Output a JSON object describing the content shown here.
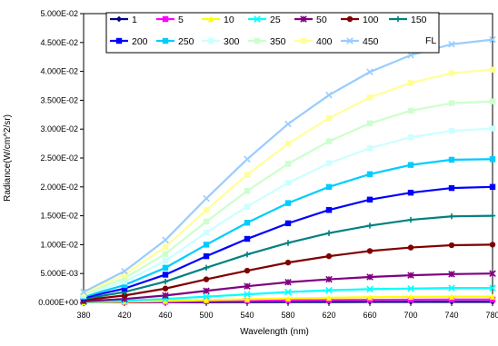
{
  "chart_data": {
    "type": "line",
    "xlabel": "Wavelength  (nm)",
    "ylabel": "Radiance(W/cm^2/sr)",
    "xlim": [
      380,
      780
    ],
    "ylim": [
      0,
      0.05
    ],
    "x_ticks": [
      {
        "value": 380,
        "label": "380"
      },
      {
        "value": 420,
        "label": "420"
      },
      {
        "value": 460,
        "label": "460"
      },
      {
        "value": 500,
        "label": "500"
      },
      {
        "value": 540,
        "label": "540"
      },
      {
        "value": 580,
        "label": "580"
      },
      {
        "value": 620,
        "label": "620"
      },
      {
        "value": 660,
        "label": "660"
      },
      {
        "value": 700,
        "label": "700"
      },
      {
        "value": 740,
        "label": "740"
      },
      {
        "value": 780,
        "label": "780"
      }
    ],
    "y_ticks": [
      {
        "value": 0,
        "label": "0.000E+00"
      },
      {
        "value": 0.005,
        "label": "5.000E-03"
      },
      {
        "value": 0.01,
        "label": "1.000E-02"
      },
      {
        "value": 0.015,
        "label": "1.500E-02"
      },
      {
        "value": 0.02,
        "label": "2.000E-02"
      },
      {
        "value": 0.025,
        "label": "2.500E-02"
      },
      {
        "value": 0.03,
        "label": "3.000E-02"
      },
      {
        "value": 0.035,
        "label": "3.500E-02"
      },
      {
        "value": 0.04,
        "label": "4.000E-02"
      },
      {
        "value": 0.045,
        "label": "4.500E-02"
      },
      {
        "value": 0.05,
        "label": "5.000E-02"
      }
    ],
    "grid": false,
    "legend_position": "top",
    "x": [
      380,
      420,
      460,
      500,
      540,
      580,
      620,
      660,
      700,
      740,
      780
    ],
    "series": [
      {
        "name": "1",
        "color": "#000080",
        "marker": "diamond",
        "values": [
          1e-05,
          2e-05,
          3e-05,
          4e-05,
          6e-05,
          7e-05,
          8e-05,
          9e-05,
          0.0001,
          0.0001,
          0.0001
        ]
      },
      {
        "name": "5",
        "color": "#ff00ff",
        "marker": "square",
        "values": [
          2e-05,
          6e-05,
          0.00012,
          0.0002,
          0.00028,
          0.00035,
          0.0004,
          0.00044,
          0.00048,
          0.0005,
          0.0005
        ]
      },
      {
        "name": "10",
        "color": "#ffff00",
        "marker": "triangle",
        "values": [
          4e-05,
          0.00012,
          0.00025,
          0.0004,
          0.00055,
          0.0007,
          0.0008,
          0.0009,
          0.00095,
          0.001,
          0.001
        ]
      },
      {
        "name": "25",
        "color": "#00ffff",
        "marker": "x",
        "values": [
          0.0001,
          0.0003,
          0.0006,
          0.001,
          0.0014,
          0.0018,
          0.0021,
          0.0023,
          0.0024,
          0.0025,
          0.0025
        ]
      },
      {
        "name": "50",
        "color": "#800080",
        "marker": "star",
        "values": [
          0.0002,
          0.0006,
          0.0012,
          0.002,
          0.0028,
          0.0035,
          0.004,
          0.0044,
          0.0047,
          0.0049,
          0.005
        ]
      },
      {
        "name": "100",
        "color": "#800000",
        "marker": "circle",
        "values": [
          0.0004,
          0.0012,
          0.0024,
          0.004,
          0.0055,
          0.0069,
          0.008,
          0.0089,
          0.0095,
          0.0099,
          0.01
        ]
      },
      {
        "name": "150",
        "color": "#008080",
        "marker": "plus",
        "values": [
          0.0006,
          0.0018,
          0.0036,
          0.006,
          0.0083,
          0.0103,
          0.012,
          0.0133,
          0.0143,
          0.0149,
          0.015
        ]
      },
      {
        "name": "200",
        "color": "#0000ff",
        "marker": "filled-square",
        "values": [
          0.0008,
          0.0024,
          0.0048,
          0.008,
          0.011,
          0.0137,
          0.016,
          0.0178,
          0.019,
          0.0198,
          0.02
        ]
      },
      {
        "name": "250",
        "color": "#00ccff",
        "marker": "filled-square",
        "values": [
          0.001,
          0.003,
          0.006,
          0.01,
          0.0138,
          0.0172,
          0.02,
          0.0222,
          0.0238,
          0.0247,
          0.0248
        ]
      },
      {
        "name": "300",
        "color": "#ccffff",
        "marker": "filled-square",
        "values": [
          0.0012,
          0.0036,
          0.0072,
          0.0121,
          0.0166,
          0.0207,
          0.0241,
          0.0267,
          0.0286,
          0.0297,
          0.0301
        ]
      },
      {
        "name": "350",
        "color": "#ccffcc",
        "marker": "filled-square",
        "values": [
          0.0014,
          0.0042,
          0.0084,
          0.014,
          0.0193,
          0.024,
          0.0279,
          0.031,
          0.0332,
          0.0345,
          0.0348
        ]
      },
      {
        "name": "400",
        "color": "#ffff99",
        "marker": "filled-square",
        "values": [
          0.0016,
          0.0048,
          0.0096,
          0.016,
          0.0221,
          0.0275,
          0.0319,
          0.0355,
          0.038,
          0.0397,
          0.0403
        ]
      },
      {
        "name": "450",
        "color": "#99ccff",
        "marker": "x",
        "values": [
          0.0018,
          0.0054,
          0.0108,
          0.018,
          0.0248,
          0.0309,
          0.0359,
          0.0399,
          0.0428,
          0.0447,
          0.0455
        ]
      }
    ],
    "legend_extra_label": "FL"
  }
}
